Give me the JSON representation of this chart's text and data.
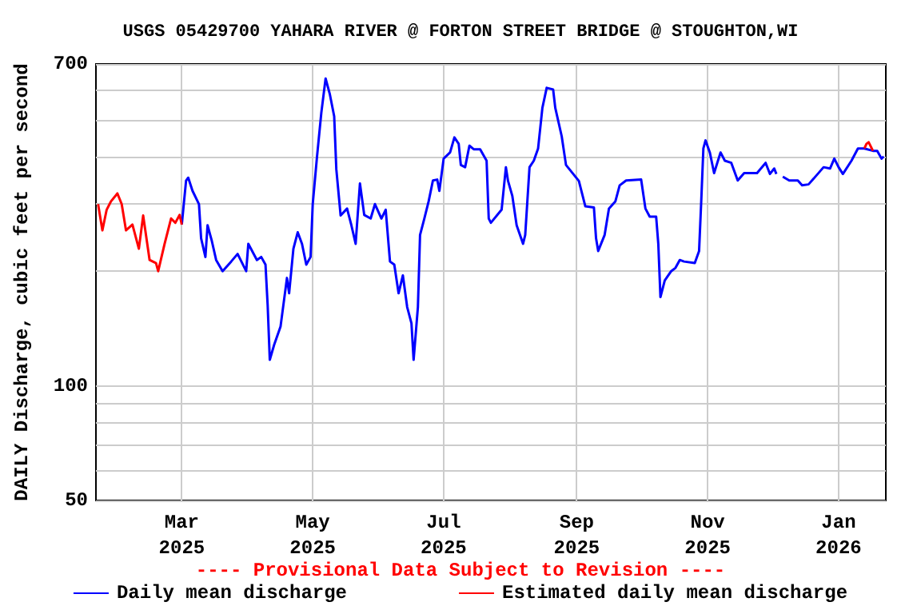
{
  "chart_data": {
    "type": "line",
    "title": "USGS 05429700 YAHARA RIVER @ FORTON STREET BRIDGE @ STOUGHTON,WI",
    "ylabel": "DAILY Discharge, cubic feet per second",
    "annotations": [
      "---- Provisional Data Subject to Revision ----"
    ],
    "series": [
      {
        "name": "Daily mean discharge",
        "color": "#0000ff",
        "x": [
          "2025-03-01",
          "2025-03-03",
          "2025-03-04",
          "2025-03-06",
          "2025-03-09",
          "2025-03-10",
          "2025-03-12",
          "2025-03-13",
          "2025-03-15",
          "2025-03-17",
          "2025-03-20",
          "2025-03-24",
          "2025-03-27",
          "2025-03-31",
          "2025-04-01",
          "2025-04-05",
          "2025-04-07",
          "2025-04-09",
          "2025-04-10",
          "2025-04-11",
          "2025-04-13",
          "2025-04-16",
          "2025-04-19",
          "2025-04-20",
          "2025-04-22",
          "2025-04-24",
          "2025-04-26",
          "2025-04-28",
          "2025-04-30",
          "2025-05-01",
          "2025-05-03",
          "2025-05-05",
          "2025-05-07",
          "2025-05-09",
          "2025-05-11",
          "2025-05-12",
          "2025-05-14",
          "2025-05-17",
          "2025-05-19",
          "2025-05-21",
          "2025-05-23",
          "2025-05-25",
          "2025-05-28",
          "2025-05-30",
          "2025-06-02",
          "2025-06-04",
          "2025-06-06",
          "2025-06-08",
          "2025-06-10",
          "2025-06-12",
          "2025-06-14",
          "2025-06-16",
          "2025-06-17",
          "2025-06-19",
          "2025-06-20",
          "2025-06-22",
          "2025-06-24",
          "2025-06-26",
          "2025-06-28",
          "2025-06-29",
          "2025-07-01",
          "2025-07-04",
          "2025-07-06",
          "2025-07-08",
          "2025-07-09",
          "2025-07-11",
          "2025-07-13",
          "2025-07-15",
          "2025-07-18",
          "2025-07-21",
          "2025-07-22",
          "2025-07-23",
          "2025-07-28",
          "2025-07-30",
          "2025-07-31",
          "2025-08-02",
          "2025-08-04",
          "2025-08-07",
          "2025-08-08",
          "2025-08-10",
          "2025-08-12",
          "2025-08-14",
          "2025-08-16",
          "2025-08-18",
          "2025-08-21",
          "2025-08-22",
          "2025-08-25",
          "2025-08-27",
          "2025-08-30",
          "2025-09-02",
          "2025-09-05",
          "2025-09-09",
          "2025-09-10",
          "2025-09-11",
          "2025-09-14",
          "2025-09-16",
          "2025-09-19",
          "2025-09-21",
          "2025-09-24",
          "2025-10-01",
          "2025-10-03",
          "2025-10-05",
          "2025-10-08",
          "2025-10-09",
          "2025-10-10",
          "2025-10-12",
          "2025-10-15",
          "2025-10-17",
          "2025-10-19",
          "2025-10-21",
          "2025-10-26",
          "2025-10-28",
          "2025-10-29",
          "2025-10-30",
          "2025-10-31",
          "2025-11-02",
          "2025-11-04",
          "2025-11-07",
          "2025-11-09",
          "2025-11-12",
          "2025-11-15",
          "2025-11-18",
          "2025-11-21",
          "2025-11-24",
          "2025-11-28",
          "2025-11-30",
          "2025-12-02",
          "2025-12-03",
          "2025-12-05",
          "2025-12-06",
          "2025-12-09",
          "2025-12-13",
          "2025-12-15",
          "2025-12-18",
          "2025-12-20",
          "2025-12-25",
          "2025-12-28",
          "2025-12-30",
          "2026-01-01",
          "2026-01-03",
          "2026-01-07",
          "2026-01-10",
          "2026-01-13",
          "2026-01-17",
          "2026-01-18",
          "2026-01-19",
          "2026-01-21",
          "2026-01-22"
        ],
        "values": [
          265,
          346,
          352,
          325,
          300,
          244,
          218,
          264,
          240,
          214,
          200,
          212,
          222,
          200,
          236,
          214,
          218,
          208,
          163,
          117,
          128,
          143,
          192,
          175,
          229,
          253,
          236,
          208,
          218,
          300,
          400,
          521,
          641,
          582,
          510,
          370,
          280,
          292,
          264,
          236,
          340,
          281,
          275,
          300,
          275,
          290,
          212,
          208,
          175,
          195,
          161,
          146,
          117,
          161,
          249,
          275,
          305,
          346,
          348,
          325,
          395,
          410,
          449,
          432,
          380,
          375,
          427,
          418,
          418,
          390,
          275,
          268,
          290,
          375,
          345,
          315,
          264,
          236,
          249,
          375,
          390,
          420,
          537,
          606,
          600,
          537,
          452,
          380,
          362,
          345,
          296,
          294,
          244,
          226,
          249,
          292,
          305,
          336,
          346,
          348,
          292,
          278,
          278,
          236,
          171,
          189,
          200,
          204,
          214,
          212,
          210,
          226,
          305,
          420,
          441,
          410,
          362,
          410,
          390,
          385,
          346,
          362,
          362,
          362,
          385,
          360,
          372,
          360,
          null,
          354,
          346,
          346,
          336,
          338,
          348,
          375,
          372,
          395,
          375,
          360,
          390,
          420,
          420,
          414,
          414,
          414,
          395,
          400
        ]
      },
      {
        "name": "Estimated daily mean discharge",
        "color": "#ff0000",
        "x": [
          "2025-01-21",
          "2025-01-23",
          "2025-01-25",
          "2025-01-27",
          "2025-01-30",
          "2025-02-01",
          "2025-02-03",
          "2025-02-06",
          "2025-02-09",
          "2025-02-11",
          "2025-02-14",
          "2025-02-17",
          "2025-02-18",
          "2025-02-21",
          "2025-02-24",
          "2025-02-26",
          "2025-02-28",
          "2025-03-01"
        ],
        "values": [
          300,
          256,
          290,
          305,
          320,
          300,
          256,
          265,
          229,
          280,
          214,
          210,
          200,
          236,
          275,
          268,
          281,
          265
        ]
      },
      {
        "color": "#ff0000",
        "x": [
          "2026-01-13",
          "2026-01-14",
          "2026-01-15",
          "2026-01-17"
        ],
        "values": [
          420,
          432,
          436,
          414
        ]
      }
    ],
    "xlim": [
      "2025-01-20",
      "2026-01-23"
    ],
    "xticks": [
      {
        "value": "2025-03-01",
        "label": "Mar\n2025"
      },
      {
        "value": "2025-05-01",
        "label": "May\n2025"
      },
      {
        "value": "2025-07-01",
        "label": "Jul\n2025"
      },
      {
        "value": "2025-09-01",
        "label": "Sep\n2025"
      },
      {
        "value": "2025-11-01",
        "label": "Nov\n2025"
      },
      {
        "value": "2026-01-01",
        "label": "Jan\n2026"
      }
    ],
    "ylim": [
      50,
      700
    ],
    "log": true,
    "yticks": [
      50,
      {
        "value": 60,
        "label": null
      },
      {
        "value": 70,
        "label": null
      },
      {
        "value": 80,
        "label": null
      },
      {
        "value": 90,
        "label": null
      },
      100,
      {
        "value": 200,
        "label": null
      },
      {
        "value": 300,
        "label": null
      },
      {
        "value": 400,
        "label": null
      },
      {
        "value": 500,
        "label": null
      },
      {
        "value": 600,
        "label": null
      },
      700
    ],
    "grid": true,
    "legend": "bottom"
  }
}
